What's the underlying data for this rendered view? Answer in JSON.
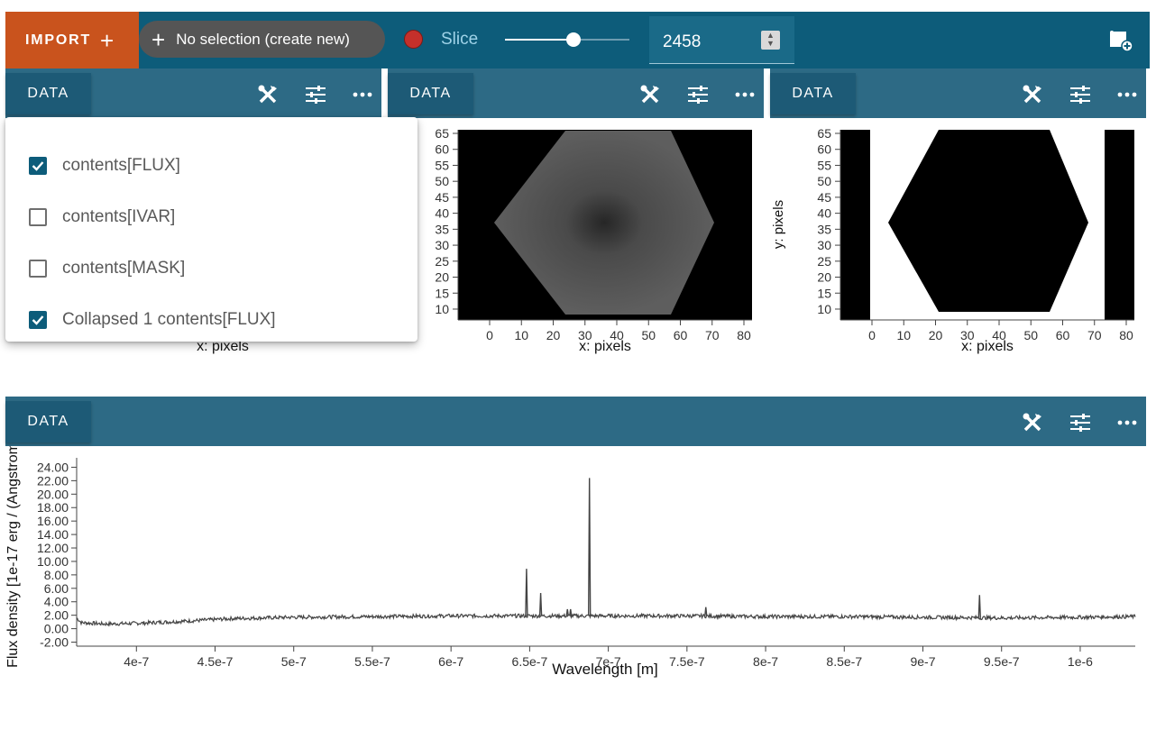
{
  "toolbar": {
    "import_label": "IMPORT",
    "selection_label": "No selection (create new)",
    "slice_label": "Slice",
    "slice_value": "2458",
    "slider_fraction": 0.55,
    "accent_color": "#0d5c7a",
    "import_color": "#c9531d"
  },
  "viewers": {
    "data_label": "DATA",
    "icons": [
      "tools-icon",
      "settings-sliders-icon",
      "more-dots-icon"
    ]
  },
  "dropdown": {
    "items": [
      {
        "label": "contents[FLUX]",
        "checked": true
      },
      {
        "label": "contents[IVAR]",
        "checked": false
      },
      {
        "label": "contents[MASK]",
        "checked": false
      },
      {
        "label": "Collapsed 1 contents[FLUX]",
        "checked": true
      }
    ]
  },
  "image_viewer_1": {
    "xlabel": "x: pixels"
  },
  "image_viewer_2": {
    "xlabel": "x: pixels",
    "yticks": [
      "65",
      "60",
      "55",
      "50",
      "45",
      "40",
      "35",
      "30",
      "25",
      "20",
      "15",
      "10"
    ],
    "xticks": [
      "0",
      "10",
      "20",
      "30",
      "40",
      "50",
      "60",
      "70",
      "80"
    ]
  },
  "image_viewer_3": {
    "xlabel": "x: pixels",
    "ylabel": "y: pixels",
    "yticks": [
      "65",
      "60",
      "55",
      "50",
      "45",
      "40",
      "35",
      "30",
      "25",
      "20",
      "15",
      "10"
    ],
    "xticks": [
      "0",
      "10",
      "20",
      "30",
      "40",
      "50",
      "60",
      "70",
      "80"
    ]
  },
  "chart_data": {
    "type": "line",
    "xlabel": "Wavelength [m]",
    "ylabel": "Flux density [1e-17 erg / (Angstrom",
    "xlim": [
      3.62e-07,
      1.035e-06
    ],
    "ylim": [
      -2.6,
      25.4
    ],
    "xticks": [
      "4e-7",
      "4.5e-7",
      "5e-7",
      "5.5e-7",
      "6e-7",
      "6.5e-7",
      "7e-7",
      "7.5e-7",
      "8e-7",
      "8.5e-7",
      "9e-7",
      "9.5e-7",
      "1e-6"
    ],
    "yticks": [
      "24.00",
      "22.00",
      "20.00",
      "18.00",
      "16.00",
      "14.00",
      "12.00",
      "10.00",
      "8.00",
      "6.00",
      "4.00",
      "2.00",
      "0.00",
      "-2.00"
    ],
    "continuum": {
      "x": [
        3.62e-07,
        3.65e-07,
        3.8e-07,
        4e-07,
        4.3e-07,
        4.6e-07,
        5e-07,
        5.5e-07,
        6e-07,
        6.5e-07,
        7e-07,
        7.5e-07,
        8e-07,
        8.5e-07,
        9e-07,
        9.5e-07,
        1e-06,
        1.035e-06
      ],
      "y": [
        1.6,
        0.9,
        0.7,
        0.8,
        1.1,
        1.5,
        1.7,
        1.8,
        1.9,
        1.9,
        1.9,
        1.9,
        1.8,
        1.8,
        1.7,
        1.6,
        1.7,
        1.8
      ]
    },
    "peaks": [
      {
        "x": 6.48e-07,
        "y": 8.9
      },
      {
        "x": 6.57e-07,
        "y": 5.3
      },
      {
        "x": 6.74e-07,
        "y": 2.9
      },
      {
        "x": 6.76e-07,
        "y": 2.9
      },
      {
        "x": 6.88e-07,
        "y": 22.4
      },
      {
        "x": 7.62e-07,
        "y": 3.2
      },
      {
        "x": 9.36e-07,
        "y": 5.0
      }
    ]
  }
}
